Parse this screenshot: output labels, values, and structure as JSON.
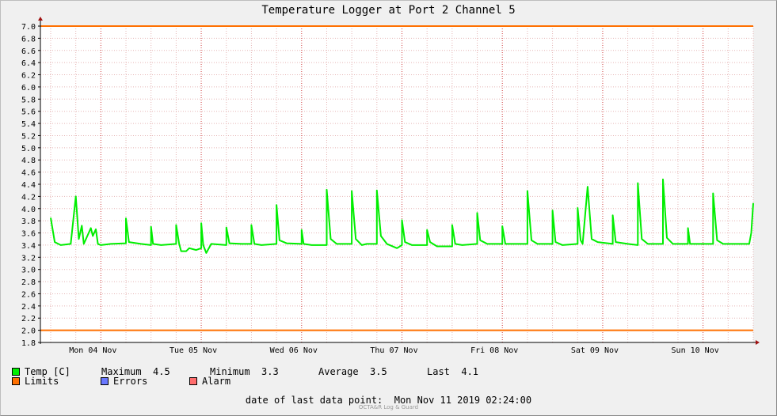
{
  "chart_data": {
    "type": "line",
    "title": "Temperature Logger at Port 2 Channel 5",
    "ylim": [
      1.8,
      7.0
    ],
    "y_ticks": [
      "7.0",
      "6.8",
      "6.6",
      "6.4",
      "6.2",
      "6.0",
      "5.8",
      "5.6",
      "5.4",
      "5.2",
      "5.0",
      "4.8",
      "4.6",
      "4.4",
      "4.2",
      "4.0",
      "3.8",
      "3.6",
      "3.4",
      "3.2",
      "3.0",
      "2.8",
      "2.6",
      "2.4",
      "2.2",
      "2.0",
      "1.8"
    ],
    "x_labels": [
      "Mon 04 Nov",
      "Tue 05 Nov",
      "Wed 06 Nov",
      "Thu 07 Nov",
      "Fri 08 Nov",
      "Sat 09 Nov",
      "Sun 10 Nov"
    ],
    "xlim_days": [
      0,
      7
    ],
    "grid": true,
    "limits": {
      "upper": 7.0,
      "lower": 2.0
    },
    "series": [
      {
        "name": "Temp [C]",
        "color": "#00ee00",
        "points": [
          [
            0.0,
            3.85
          ],
          [
            0.04,
            3.45
          ],
          [
            0.1,
            3.4
          ],
          [
            0.2,
            3.42
          ],
          [
            0.25,
            4.2
          ],
          [
            0.28,
            3.5
          ],
          [
            0.31,
            3.72
          ],
          [
            0.33,
            3.42
          ],
          [
            0.4,
            3.68
          ],
          [
            0.42,
            3.55
          ],
          [
            0.45,
            3.66
          ],
          [
            0.47,
            3.42
          ],
          [
            0.5,
            3.4
          ],
          [
            0.6,
            3.42
          ],
          [
            0.75,
            3.43
          ],
          [
            0.75,
            3.84
          ],
          [
            0.78,
            3.45
          ],
          [
            0.9,
            3.42
          ],
          [
            1.0,
            3.4
          ],
          [
            1.0,
            3.7
          ],
          [
            1.02,
            3.42
          ],
          [
            1.1,
            3.4
          ],
          [
            1.25,
            3.42
          ],
          [
            1.25,
            3.73
          ],
          [
            1.28,
            3.42
          ],
          [
            1.3,
            3.3
          ],
          [
            1.35,
            3.3
          ],
          [
            1.38,
            3.35
          ],
          [
            1.45,
            3.32
          ],
          [
            1.5,
            3.35
          ],
          [
            1.5,
            3.76
          ],
          [
            1.52,
            3.4
          ],
          [
            1.55,
            3.27
          ],
          [
            1.6,
            3.42
          ],
          [
            1.75,
            3.4
          ],
          [
            1.75,
            3.69
          ],
          [
            1.78,
            3.43
          ],
          [
            1.9,
            3.42
          ],
          [
            2.0,
            3.42
          ],
          [
            2.0,
            3.73
          ],
          [
            2.03,
            3.42
          ],
          [
            2.1,
            3.4
          ],
          [
            2.25,
            3.42
          ],
          [
            2.25,
            4.06
          ],
          [
            2.28,
            3.48
          ],
          [
            2.35,
            3.43
          ],
          [
            2.5,
            3.42
          ],
          [
            2.5,
            3.65
          ],
          [
            2.52,
            3.42
          ],
          [
            2.6,
            3.4
          ],
          [
            2.75,
            3.4
          ],
          [
            2.75,
            4.31
          ],
          [
            2.79,
            3.5
          ],
          [
            2.85,
            3.42
          ],
          [
            3.0,
            3.42
          ],
          [
            3.0,
            4.29
          ],
          [
            3.04,
            3.5
          ],
          [
            3.1,
            3.4
          ],
          [
            3.15,
            3.42
          ],
          [
            3.25,
            3.42
          ],
          [
            3.25,
            4.3
          ],
          [
            3.29,
            3.55
          ],
          [
            3.35,
            3.42
          ],
          [
            3.45,
            3.35
          ],
          [
            3.5,
            3.4
          ],
          [
            3.5,
            3.81
          ],
          [
            3.53,
            3.45
          ],
          [
            3.6,
            3.4
          ],
          [
            3.75,
            3.4
          ],
          [
            3.75,
            3.65
          ],
          [
            3.78,
            3.45
          ],
          [
            3.85,
            3.38
          ],
          [
            4.0,
            3.38
          ],
          [
            4.0,
            3.73
          ],
          [
            4.03,
            3.42
          ],
          [
            4.1,
            3.4
          ],
          [
            4.25,
            3.42
          ],
          [
            4.25,
            3.93
          ],
          [
            4.28,
            3.48
          ],
          [
            4.35,
            3.42
          ],
          [
            4.5,
            3.42
          ],
          [
            4.5,
            3.71
          ],
          [
            4.53,
            3.42
          ],
          [
            4.65,
            3.42
          ],
          [
            4.75,
            3.42
          ],
          [
            4.75,
            4.29
          ],
          [
            4.79,
            3.48
          ],
          [
            4.85,
            3.42
          ],
          [
            5.0,
            3.42
          ],
          [
            5.0,
            3.97
          ],
          [
            5.03,
            3.45
          ],
          [
            5.1,
            3.4
          ],
          [
            5.25,
            3.42
          ],
          [
            5.25,
            4.01
          ],
          [
            5.28,
            3.48
          ],
          [
            5.3,
            3.42
          ],
          [
            5.35,
            4.36
          ],
          [
            5.39,
            3.5
          ],
          [
            5.45,
            3.45
          ],
          [
            5.6,
            3.42
          ],
          [
            5.6,
            3.89
          ],
          [
            5.63,
            3.45
          ],
          [
            5.75,
            3.42
          ],
          [
            5.85,
            3.4
          ],
          [
            5.85,
            4.42
          ],
          [
            5.89,
            3.5
          ],
          [
            5.95,
            3.42
          ],
          [
            6.1,
            3.42
          ],
          [
            6.1,
            4.48
          ],
          [
            6.14,
            3.52
          ],
          [
            6.2,
            3.42
          ],
          [
            6.35,
            3.42
          ],
          [
            6.35,
            3.68
          ],
          [
            6.37,
            3.42
          ],
          [
            6.5,
            3.42
          ],
          [
            6.6,
            3.42
          ],
          [
            6.6,
            4.25
          ],
          [
            6.64,
            3.48
          ],
          [
            6.7,
            3.42
          ],
          [
            6.8,
            3.42
          ],
          [
            6.96,
            3.42
          ],
          [
            6.98,
            3.6
          ],
          [
            7.0,
            4.09
          ]
        ]
      }
    ],
    "stats": {
      "maximum_label": "Maximum",
      "maximum": "4.5",
      "minimum_label": "Minimum",
      "minimum": "3.3",
      "average_label": "Average",
      "average": "3.5",
      "last_label": "Last",
      "last": "4.1"
    },
    "legend": [
      {
        "key": "temp",
        "label": "Temp [C]",
        "color": "#00ee00"
      },
      {
        "key": "limits",
        "label": "Limits",
        "color": "#ff7000"
      },
      {
        "key": "errors",
        "label": "Errors",
        "color": "#6a78ff"
      },
      {
        "key": "alarm",
        "label": "Alarm",
        "color": "#ff6d6d"
      }
    ],
    "last_data_point": "date of last data point:  Mon Nov 11 2019 02:24:00",
    "credit": "OCTA&R Log & Guard"
  },
  "colors": {
    "limits": "#ff7000",
    "axis": "#000000",
    "axis_arrow": "#a01010",
    "grid_minor": "#e5b5b5",
    "grid_major": "#d04040",
    "plot_bg": "#ffffff"
  }
}
